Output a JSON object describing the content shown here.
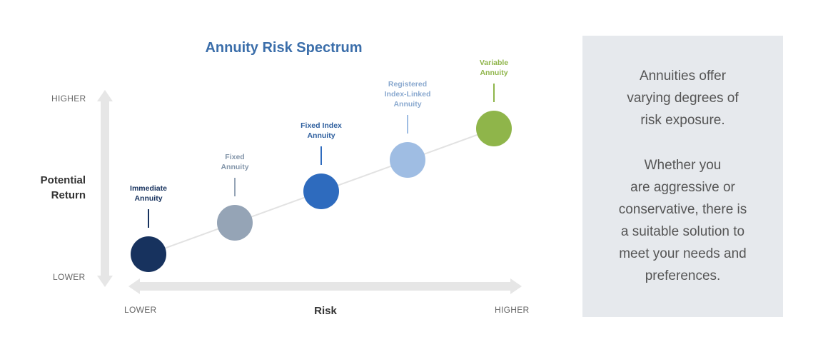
{
  "title": "Annuity Risk Spectrum",
  "y_axis": {
    "label_lines": [
      "Potential",
      "Return"
    ],
    "top_label": "HIGHER",
    "bottom_label": "LOWER"
  },
  "x_axis": {
    "label": "Risk",
    "left_label": "LOWER",
    "right_label": "HIGHER"
  },
  "colors": {
    "arrow": "#e6e6e6",
    "trend_line": "#e2e2e2",
    "panel_bg": "#e6e9ed",
    "title": "#3b6eaa"
  },
  "points": [
    {
      "lines": [
        "Immediate",
        "Annuity"
      ],
      "color": "#17325e",
      "label_color": "#17325e",
      "level": 1
    },
    {
      "lines": [
        "Fixed",
        "Annuity"
      ],
      "color": "#95a4b6",
      "label_color": "#8496aa",
      "level": 2
    },
    {
      "lines": [
        "Fixed Index",
        "Annuity"
      ],
      "color": "#2e6bbe",
      "label_color": "#2e5f9e",
      "level": 3
    },
    {
      "lines": [
        "Registered",
        "Index-Linked",
        "Annuity"
      ],
      "color": "#9fbde3",
      "label_color": "#8aa9cf",
      "level": 4
    },
    {
      "lines": [
        "Variable",
        "Annuity"
      ],
      "color": "#8fb54a",
      "label_color": "#8fb54a",
      "level": 5
    }
  ],
  "panel": {
    "paragraphs": [
      [
        "Annuities offer",
        "varying degrees of",
        "risk exposure."
      ],
      [
        "Whether you",
        "are aggressive or",
        "conservative, there is",
        "a suitable solution to",
        "meet your needs and",
        "preferences."
      ]
    ]
  }
}
